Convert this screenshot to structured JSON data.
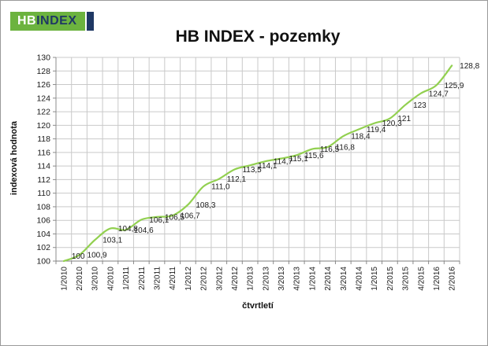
{
  "logo": {
    "hb": "HB",
    "index": "INDEX",
    "green": "#6cb33f",
    "navy": "#1f3864"
  },
  "chart_data": {
    "type": "line",
    "title": "HB INDEX - pozemky",
    "xlabel": "čtvrtletí",
    "ylabel": "indexová hodnota",
    "ylim": [
      100,
      130
    ],
    "ytick_step": 2,
    "yticks": [
      100,
      102,
      104,
      106,
      108,
      110,
      112,
      114,
      116,
      118,
      120,
      122,
      124,
      126,
      128,
      130
    ],
    "grid": true,
    "legend": false,
    "smooth": true,
    "line_color": "#92d050",
    "grid_color": "#c9c9c9",
    "axis_color": "#8c8c8c",
    "label_color": "#1a1a1a",
    "categories": [
      "1/2010",
      "2/2010",
      "3/2010",
      "4/2010",
      "1/2011",
      "2/2011",
      "3/2011",
      "4/2011",
      "1/2012",
      "2/2012",
      "3/2012",
      "4/2012",
      "1/2013",
      "2/2013",
      "3/2013",
      "4/2013",
      "1/2014",
      "2/2014",
      "3/2014",
      "4/2014",
      "1/2015",
      "2/2015",
      "3/2015",
      "4/2015",
      "1/2016",
      "2/2016"
    ],
    "values": [
      100,
      100.9,
      103.1,
      104.8,
      104.6,
      106.1,
      106.5,
      106.7,
      108.3,
      111.0,
      112.1,
      113.5,
      114.1,
      114.7,
      115.1,
      115.6,
      116.5,
      116.8,
      118.4,
      119.4,
      120.3,
      121,
      123,
      124.7,
      125.9,
      128.8
    ],
    "point_labels": [
      "100",
      "100,9",
      "103,1",
      "104,8",
      "104,6",
      "106,1",
      "106,5",
      "106,7",
      "108,3",
      "111,0",
      "112,1",
      "113,5",
      "114,1",
      "114,7",
      "115,1",
      "115,6",
      "116,5",
      "116,8",
      "118,4",
      "119,4",
      "120,3",
      "121",
      "123",
      "124,7",
      "125,9",
      "128,8"
    ]
  }
}
